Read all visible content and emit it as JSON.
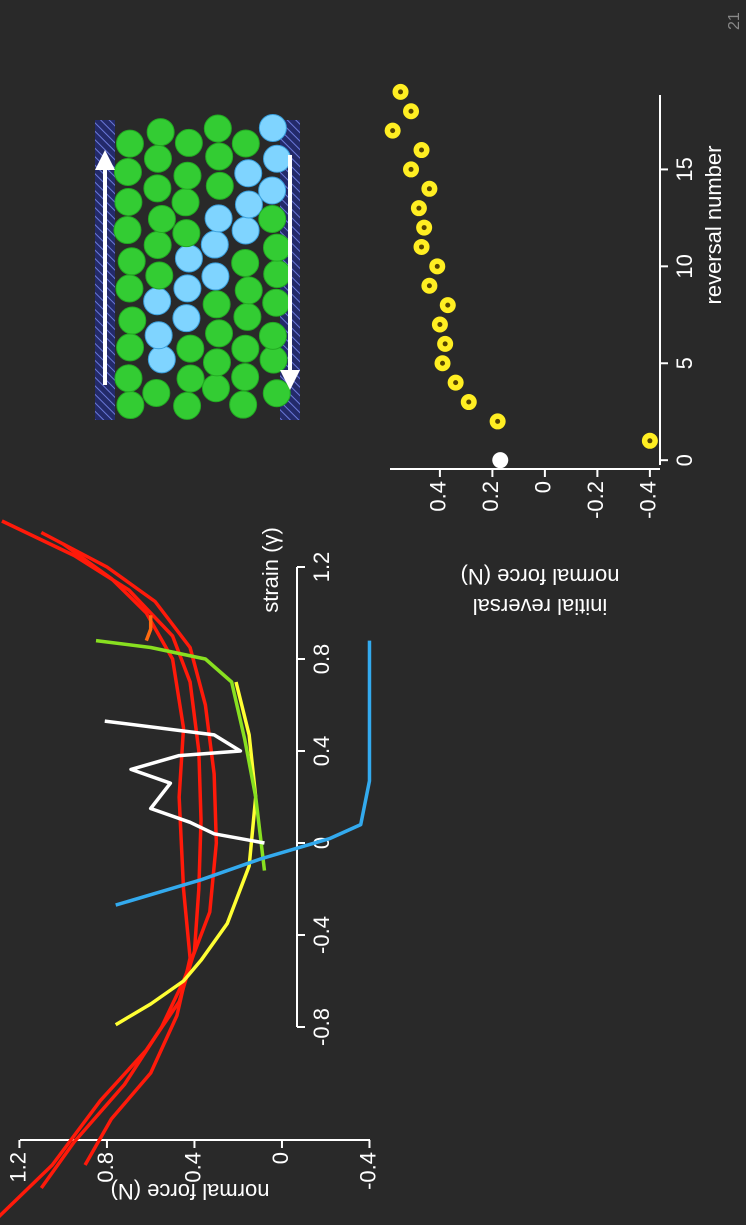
{
  "page_number": "21",
  "chart_data": [
    {
      "type": "line",
      "xlabel": "strain (γ)",
      "ylabel": "normal force (N)",
      "xlim": [
        -1.65,
        1.45
      ],
      "xticks": [
        -0.8,
        -0.4,
        0.0,
        0.4,
        0.8,
        1.2
      ],
      "ylim": [
        -0.46,
        1.33
      ],
      "yticks": [
        1.2,
        0.8,
        0.4,
        0.0,
        -0.4
      ],
      "series": [
        {
          "color": "#ff1a0a",
          "x": [
            -1.63,
            -1.4,
            -1.12,
            -0.9,
            -0.69,
            -0.47,
            -0.2,
            0.1,
            0.4,
            0.7,
            0.9,
            1.1,
            1.25,
            1.4
          ],
          "values": [
            1.3,
            1.05,
            0.83,
            0.62,
            0.47,
            0.4,
            0.38,
            0.37,
            0.38,
            0.42,
            0.5,
            0.7,
            0.95,
            1.28
          ]
        },
        {
          "color": "#ff1a0a",
          "x": [
            -1.5,
            -1.3,
            -1.05,
            -0.8,
            -0.6,
            -0.3,
            0.0,
            0.3,
            0.6,
            0.85,
            1.05,
            1.2,
            1.35
          ],
          "values": [
            1.1,
            0.95,
            0.72,
            0.55,
            0.45,
            0.33,
            0.3,
            0.31,
            0.35,
            0.42,
            0.58,
            0.8,
            1.1
          ]
        },
        {
          "color": "#ff1a0a",
          "x": [
            -1.4,
            -1.2,
            -1.0,
            -0.75,
            -0.5,
            -0.2,
            0.2,
            0.5,
            0.8,
            1.0,
            1.15,
            1.3
          ],
          "values": [
            0.9,
            0.78,
            0.6,
            0.48,
            0.42,
            0.45,
            0.47,
            0.45,
            0.5,
            0.62,
            0.78,
            1.0
          ]
        },
        {
          "color": "#ff6a10",
          "x": [
            0.88,
            0.93,
            0.99
          ],
          "values": [
            0.62,
            0.6,
            0.6
          ]
        },
        {
          "color": "#ffff33",
          "x": [
            -0.79,
            -0.7,
            -0.6,
            -0.51,
            -0.35,
            -0.1,
            0.2,
            0.47,
            0.7
          ],
          "values": [
            0.76,
            0.6,
            0.45,
            0.37,
            0.25,
            0.15,
            0.12,
            0.15,
            0.21
          ]
        },
        {
          "color": "#88e020",
          "x": [
            -0.12,
            0.2,
            0.45,
            0.7,
            0.8,
            0.85,
            0.88
          ],
          "values": [
            0.08,
            0.12,
            0.17,
            0.23,
            0.35,
            0.6,
            0.85
          ]
        },
        {
          "color": "#ffffff",
          "x": [
            0.53,
            0.47,
            0.4,
            0.38,
            0.32,
            0.26,
            0.15,
            0.09,
            0.04,
            0.0
          ],
          "values": [
            0.81,
            0.31,
            0.19,
            0.47,
            0.69,
            0.51,
            0.6,
            0.42,
            0.31,
            0.08
          ]
        },
        {
          "color": "#33aaee",
          "x": [
            -0.27,
            -0.16,
            -0.07,
            0.02,
            0.08,
            0.27,
            0.88
          ],
          "values": [
            0.76,
            0.37,
            0.1,
            -0.22,
            -0.36,
            -0.4,
            -0.4
          ]
        }
      ]
    },
    {
      "type": "scatter",
      "xlabel": "reversal number",
      "ylabel": [
        "initial reversal",
        "normal force (N)"
      ],
      "xlim": [
        -0.3,
        19.2
      ],
      "xticks": [
        0,
        5,
        10,
        15
      ],
      "ylim": [
        -0.45,
        0.6
      ],
      "yticks": [
        0.4,
        0.2,
        0.0,
        -0.2,
        -0.4
      ],
      "series": [
        {
          "color": "#ffffff",
          "x": [
            0
          ],
          "values": [
            0.17
          ]
        },
        {
          "color": "#ffee22",
          "x": [
            1,
            2,
            3,
            4,
            5,
            6,
            7,
            8,
            9,
            10,
            11,
            12,
            13,
            14,
            15,
            16,
            17,
            18,
            19
          ],
          "values": [
            -0.4,
            0.18,
            0.29,
            0.34,
            0.39,
            0.38,
            0.4,
            0.37,
            0.44,
            0.41,
            0.47,
            0.46,
            0.48,
            0.44,
            0.51,
            0.47,
            0.58,
            0.51,
            0.55
          ]
        }
      ]
    }
  ]
}
